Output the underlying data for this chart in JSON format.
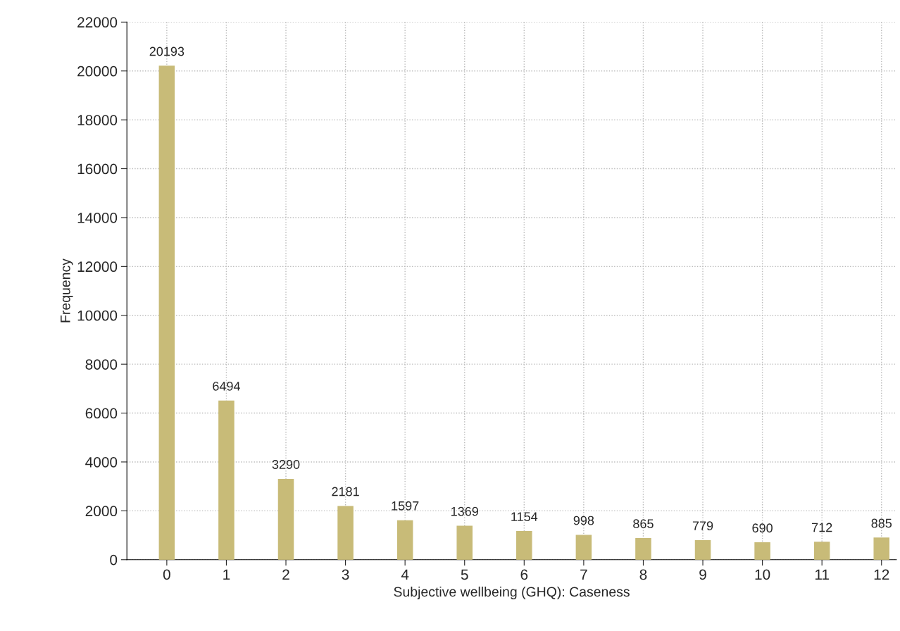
{
  "chart_data": {
    "type": "bar",
    "xlabel": "Subjective wellbeing (GHQ): Caseness",
    "ylabel": "Frequency",
    "x": [
      0,
      1,
      2,
      3,
      4,
      5,
      6,
      7,
      8,
      9,
      10,
      11,
      12
    ],
    "values": [
      20193,
      6494,
      3290,
      2181,
      1597,
      1369,
      1154,
      998,
      865,
      779,
      690,
      712,
      885
    ],
    "color": "#c8bb78",
    "data_labels": true,
    "grid": true,
    "xlim": [
      -0.67,
      12.25
    ],
    "xticks": [
      0,
      1,
      2,
      3,
      4,
      5,
      6,
      7,
      8,
      9,
      10,
      11,
      12
    ],
    "ylim": [
      0,
      22000
    ],
    "yticks": [
      0,
      2000,
      4000,
      6000,
      8000,
      10000,
      12000,
      14000,
      16000,
      18000,
      20000,
      22000
    ]
  }
}
